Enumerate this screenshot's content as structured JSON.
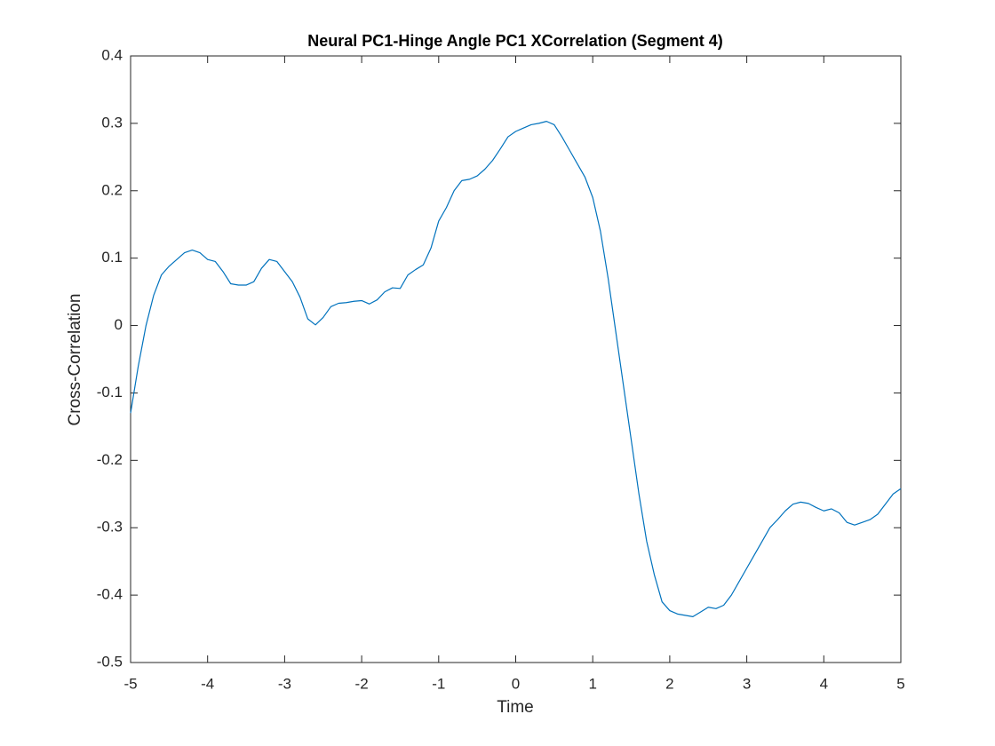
{
  "chart_data": {
    "type": "line",
    "title": "Neural PC1-Hinge Angle PC1 XCorrelation (Segment 4)",
    "x_label": "Time",
    "y_label": "Cross-Correlation",
    "xlim": [
      -5,
      5
    ],
    "ylim": [
      -0.5,
      0.4
    ],
    "xticks": [
      -5,
      -4,
      -3,
      -2,
      -1,
      0,
      1,
      2,
      3,
      4,
      5
    ],
    "yticks": [
      -0.5,
      -0.4,
      -0.3,
      -0.2,
      -0.1,
      0,
      0.1,
      0.2,
      0.3,
      0.4
    ],
    "grid": false,
    "x": [
      -5,
      -4.9,
      -4.8,
      -4.7,
      -4.6,
      -4.5,
      -4.4,
      -4.3,
      -4.2,
      -4.1,
      -4,
      -3.9,
      -3.8,
      -3.7,
      -3.6,
      -3.5,
      -3.4,
      -3.3,
      -3.2,
      -3.1,
      -3,
      -2.9,
      -2.8,
      -2.7,
      -2.6,
      -2.5,
      -2.4,
      -2.3,
      -2.2,
      -2.1,
      -2,
      -1.9,
      -1.8,
      -1.7,
      -1.6,
      -1.5,
      -1.4,
      -1.3,
      -1.2,
      -1.1,
      -1,
      -0.9,
      -0.8,
      -0.7,
      -0.6,
      -0.5,
      -0.4,
      -0.3,
      -0.2,
      -0.1,
      0,
      0.1,
      0.2,
      0.3,
      0.4,
      0.5,
      0.6,
      0.7,
      0.8,
      0.9,
      1,
      1.1,
      1.2,
      1.3,
      1.4,
      1.5,
      1.6,
      1.7,
      1.8,
      1.9,
      2,
      2.1,
      2.2,
      2.3,
      2.4,
      2.5,
      2.6,
      2.7,
      2.8,
      2.9,
      3,
      3.1,
      3.2,
      3.3,
      3.4,
      3.5,
      3.6,
      3.7,
      3.8,
      3.9,
      4,
      4.1,
      4.2,
      4.3,
      4.4,
      4.5,
      4.6,
      4.7,
      4.8,
      4.9,
      5
    ],
    "series": [
      {
        "color": "#0072bd",
        "values": [
          -0.13,
          -0.06,
          0,
          0.045,
          0.075,
          0.088,
          0.098,
          0.108,
          0.112,
          0.108,
          0.098,
          0.095,
          0.08,
          0.062,
          0.06,
          0.06,
          0.065,
          0.085,
          0.098,
          0.095,
          0.08,
          0.065,
          0.042,
          0.01,
          0.001,
          0.012,
          0.028,
          0.033,
          0.034,
          0.036,
          0.037,
          0.032,
          0.038,
          0.05,
          0.056,
          0.055,
          0.075,
          0.083,
          0.09,
          0.115,
          0.155,
          0.175,
          0.2,
          0.215,
          0.217,
          0.222,
          0.232,
          0.245,
          0.262,
          0.28,
          0.288,
          0.293,
          0.298,
          0.3,
          0.303,
          0.298,
          0.28,
          0.26,
          0.24,
          0.22,
          0.19,
          0.14,
          0.07,
          -0.01,
          -0.09,
          -0.17,
          -0.25,
          -0.32,
          -0.37,
          -0.41,
          -0.423,
          -0.428,
          -0.43,
          -0.432,
          -0.425,
          -0.418,
          -0.42,
          -0.415,
          -0.4,
          -0.38,
          -0.36,
          -0.34,
          -0.32,
          -0.3,
          -0.288,
          -0.275,
          -0.265,
          -0.262,
          -0.264,
          -0.27,
          -0.275,
          -0.272,
          -0.278,
          -0.292,
          -0.296,
          -0.292,
          -0.288,
          -0.28,
          -0.265,
          -0.25,
          -0.242
        ]
      }
    ]
  }
}
